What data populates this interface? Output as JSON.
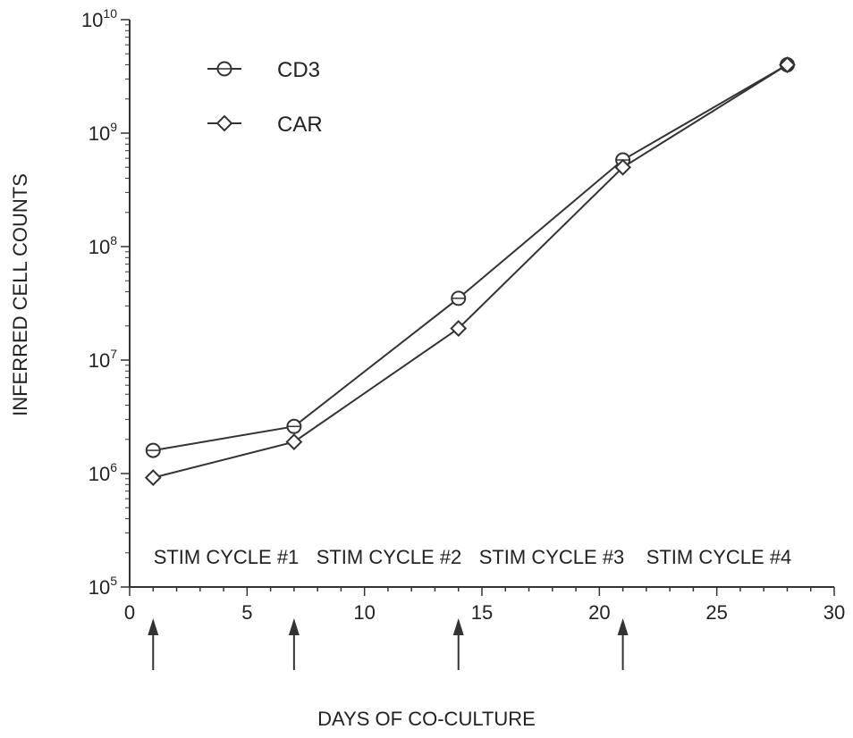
{
  "chart_data": {
    "type": "line",
    "xlabel": "DAYS OF CO-CULTURE",
    "ylabel": "INFERRED CELL COUNTS",
    "xlim": [
      0,
      30
    ],
    "ylim": [
      100000,
      10000000000
    ],
    "y_scale": "log",
    "x_ticks": [
      0,
      5,
      10,
      15,
      20,
      25,
      30
    ],
    "y_ticks": [
      {
        "value": 100000,
        "base": "10",
        "exp": "5"
      },
      {
        "value": 1000000,
        "base": "10",
        "exp": "6"
      },
      {
        "value": 10000000,
        "base": "10",
        "exp": "7"
      },
      {
        "value": 100000000,
        "base": "10",
        "exp": "8"
      },
      {
        "value": 1000000000,
        "base": "10",
        "exp": "9"
      },
      {
        "value": 10000000000,
        "base": "10",
        "exp": "10"
      }
    ],
    "series": [
      {
        "name": "CD3",
        "marker": "circle",
        "x": [
          1,
          7,
          14,
          21,
          28
        ],
        "y": [
          1600000,
          2600000,
          35000000,
          580000000,
          4000000000
        ]
      },
      {
        "name": "CAR",
        "marker": "diamond",
        "x": [
          1,
          7,
          14,
          21,
          28
        ],
        "y": [
          920000,
          1900000,
          19000000,
          500000000,
          4000000000
        ]
      }
    ],
    "annotations": [
      "STIM CYCLE #1",
      "STIM CYCLE #2",
      "STIM CYCLE #3",
      "STIM CYCLE #4"
    ],
    "stim_arrows_x": [
      1,
      7,
      14,
      21
    ],
    "legend_placement": "top-left",
    "grid": false
  },
  "colors": {
    "line": "#333333",
    "background": "#ffffff"
  }
}
